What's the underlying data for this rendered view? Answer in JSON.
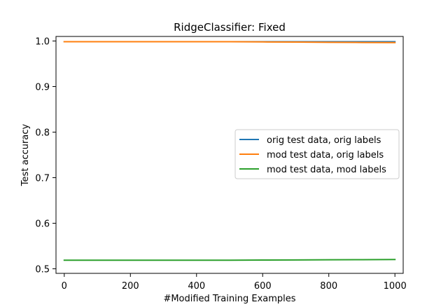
{
  "chart_data": {
    "type": "line",
    "title": "RidgeClassifier: Fixed",
    "xlabel": "#Modified Training Examples",
    "ylabel": "Test accuracy",
    "xlim": [
      -25,
      1025
    ],
    "ylim": [
      0.49,
      1.01
    ],
    "xticks": [
      0,
      200,
      400,
      600,
      800,
      1000
    ],
    "xtick_labels": [
      "0",
      "200",
      "400",
      "600",
      "800",
      "1000"
    ],
    "yticks": [
      0.5,
      0.6,
      0.7,
      0.8,
      0.9,
      1.0
    ],
    "ytick_labels": [
      "0.5",
      "0.6",
      "0.7",
      "0.8",
      "0.9",
      "1.0"
    ],
    "grid": false,
    "legend_position": "center-right",
    "x": [
      0,
      100,
      200,
      300,
      400,
      500,
      600,
      700,
      800,
      900,
      1000
    ],
    "series": [
      {
        "name": "orig test data, orig labels",
        "color": "#1f77b4",
        "values": [
          0.9985,
          0.9985,
          0.9985,
          0.9985,
          0.9985,
          0.9985,
          0.9985,
          0.9985,
          0.9985,
          0.9985,
          0.9985
        ]
      },
      {
        "name": "mod test data, orig labels",
        "color": "#ff7f0e",
        "values": [
          0.9985,
          0.9985,
          0.9985,
          0.9985,
          0.9985,
          0.9984,
          0.998,
          0.9976,
          0.9972,
          0.9968,
          0.9965
        ]
      },
      {
        "name": "mod test data, mod labels",
        "color": "#2ca02c",
        "values": [
          0.5188,
          0.5188,
          0.5188,
          0.5188,
          0.5188,
          0.5189,
          0.5192,
          0.5195,
          0.5198,
          0.5201,
          0.5204
        ]
      }
    ]
  }
}
